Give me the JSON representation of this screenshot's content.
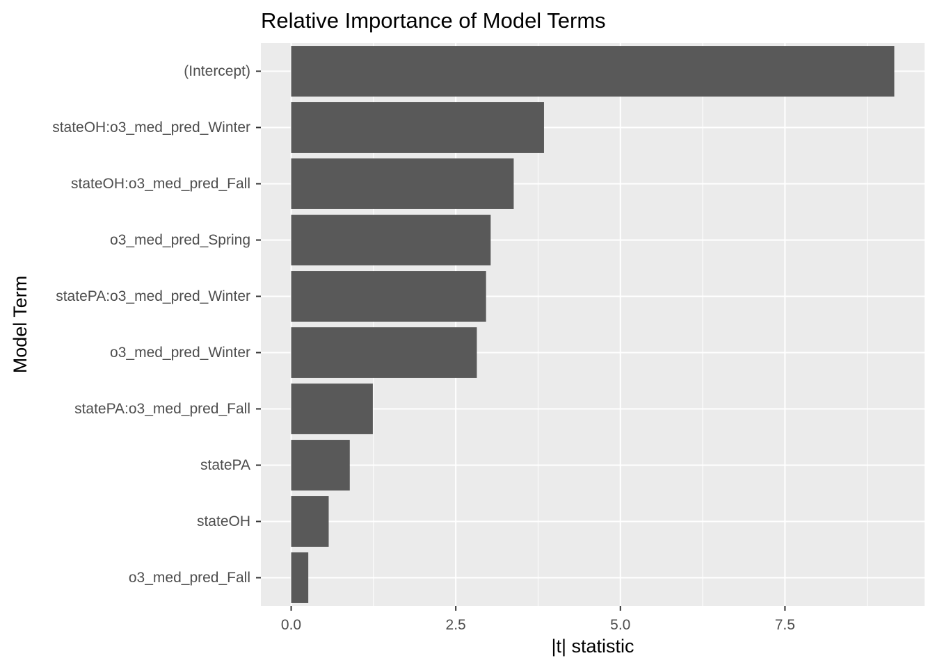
{
  "chart_data": {
    "type": "bar",
    "orientation": "horizontal",
    "title": "Relative Importance of Model Terms",
    "xlabel": "|t| statistic",
    "ylabel": "Model Term",
    "categories": [
      "(Intercept)",
      "stateOH:o3_med_pred_Winter",
      "stateOH:o3_med_pred_Fall",
      "o3_med_pred_Spring",
      "statePA:o3_med_pred_Winter",
      "o3_med_pred_Winter",
      "statePA:o3_med_pred_Fall",
      "statePA",
      "stateOH",
      "o3_med_pred_Fall"
    ],
    "values": [
      9.16,
      3.84,
      3.38,
      3.03,
      2.96,
      2.82,
      1.24,
      0.89,
      0.57,
      0.26
    ],
    "xlim": [
      -0.46,
      9.62
    ],
    "x_ticks": [
      0.0,
      2.5,
      5.0,
      7.5
    ],
    "x_tick_labels": [
      "0.0",
      "2.5",
      "5.0",
      "7.5"
    ],
    "grid": true,
    "bar_color": "#595959",
    "panel_color": "#ebebeb",
    "grid_color": "#ffffff"
  }
}
